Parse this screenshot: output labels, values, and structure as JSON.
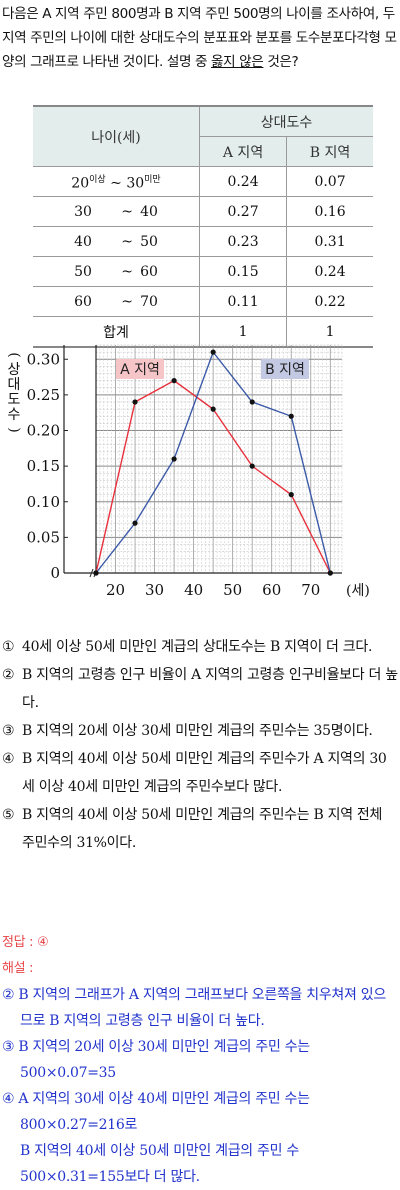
{
  "question": {
    "text_before": "다음은 A 지역 주민 800명과 B 지역 주민 500명의 나이를 조사하여, 두 지역 주민의 나이에 대한 상대도수의 분포표와 분포를 도수분포다각형 모양의 그래프로 나타낸 것이다. 설명 중 ",
    "text_underlined": "옳지 않은",
    "text_after": " 것은?"
  },
  "table": {
    "header_age": "나이(세)",
    "header_rel": "상대도수",
    "header_a": "A  지역",
    "header_b": "B  지역",
    "first_row": {
      "lo": "20",
      "lo_sup": "이상",
      "sep": "~",
      "hi": "30",
      "hi_sup": "미만",
      "a": "0.24",
      "b": "0.07"
    },
    "rows": [
      {
        "lo": "30",
        "sep": "~",
        "hi": "40",
        "a": "0.27",
        "b": "0.16"
      },
      {
        "lo": "40",
        "sep": "~",
        "hi": "50",
        "a": "0.23",
        "b": "0.31"
      },
      {
        "lo": "50",
        "sep": "~",
        "hi": "60",
        "a": "0.15",
        "b": "0.24"
      },
      {
        "lo": "60",
        "sep": "~",
        "hi": "70",
        "a": "0.11",
        "b": "0.22"
      }
    ],
    "total_label": "합계",
    "total_a": "1",
    "total_b": "1"
  },
  "chart_data": {
    "type": "line",
    "ylabel": "(상대도수)",
    "xlabel": "(세)",
    "x_ticks": [
      20,
      30,
      40,
      50,
      60,
      70
    ],
    "y_ticks": [
      "0.05",
      "0.10",
      "0.15",
      "0.20",
      "0.25",
      "0.30"
    ],
    "origin_label": "0",
    "xlim": [
      15,
      78
    ],
    "ylim": [
      0,
      0.32
    ],
    "grid": true,
    "series": [
      {
        "name": "A 지역",
        "color": "#e8313c",
        "label_bg": "#f6c5c8",
        "x": [
          15,
          25,
          35,
          45,
          55,
          65,
          75
        ],
        "y": [
          0,
          0.24,
          0.27,
          0.23,
          0.15,
          0.11,
          0
        ]
      },
      {
        "name": "B 지역",
        "color": "#3b5aa8",
        "label_bg": "#c3c8e3",
        "x": [
          15,
          25,
          35,
          45,
          55,
          65,
          75
        ],
        "y": [
          0,
          0.07,
          0.16,
          0.31,
          0.24,
          0.22,
          0
        ]
      }
    ]
  },
  "choices": [
    {
      "num": "①",
      "text": "40세 이상 50세 미만인 계급의 상대도수는 B 지역이 더 크다."
    },
    {
      "num": "②",
      "text": "B 지역의 고령층 인구 비율이 A 지역의 고령층 인구비율보다 더 높다."
    },
    {
      "num": "③",
      "text": "B 지역의 20세 이상 30세 미만인 계급의 주민수는 35명이다."
    },
    {
      "num": "④",
      "text": "B 지역의 40세 이상 50세 미만인 계급의 주민수가 A 지역의 30세 이상 40세 미만인 계급의 주민수보다 많다."
    },
    {
      "num": "⑤",
      "text": "B 지역의 40세 이상 50세 미만인 계급의 주민수는 B 지역 전체 주민수의 31%이다."
    }
  ],
  "answer": {
    "answer_line": "정답 : ④",
    "explain_label": "해설 :",
    "exp2": "② B 지역의 그래프가 A 지역의 그래프보다 오른쪽을 치우쳐져 있으므로 B 지역의 고령층 인구 비율이 더 높다.",
    "exp3_a": "③ B 지역의 20세 이상 30세 미만인 계급의 주민 수는",
    "exp3_b": "500×0.07=35",
    "exp4_a": "④ A 지역의 30세 이상 40세 미만인 계급의 주민 수는",
    "exp4_b": "800×0.27=216로",
    "exp4_c": "B 지역의 40세 이상 50세 미만인 계급의 주민 수",
    "exp4_d": "500×0.31=155보다 더 많다."
  }
}
